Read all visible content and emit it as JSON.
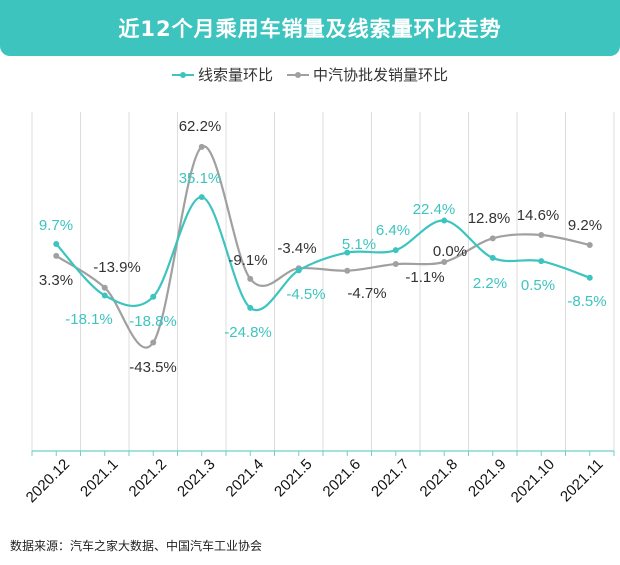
{
  "chart_data": {
    "type": "line",
    "title": "近12个月乘用车销量及线索量环比走势",
    "categories": [
      "2020.12",
      "2021.1",
      "2021.2",
      "2021.3",
      "2021.4",
      "2021.5",
      "2021.6",
      "2021.7",
      "2021.8",
      "2021.9",
      "2021.10",
      "2021.11"
    ],
    "series": [
      {
        "name": "线索量环比",
        "color": "#3dc4bf",
        "values": [
          9.7,
          -18.1,
          -18.8,
          35.1,
          -24.8,
          -4.5,
          5.1,
          6.4,
          22.4,
          2.2,
          0.5,
          -8.5
        ],
        "labels": [
          "9.7%",
          "-18.1%",
          "-18.8%",
          "35.1%",
          "-24.8%",
          "-4.5%",
          "5.1%",
          "6.4%",
          "22.4%",
          "2.2%",
          "0.5%",
          "-8.5%"
        ]
      },
      {
        "name": "中汽协批发销量环比",
        "color": "#a0a0a0",
        "values": [
          3.3,
          -13.9,
          -43.5,
          62.2,
          -9.1,
          -3.4,
          -4.7,
          -1.1,
          0.0,
          12.8,
          14.6,
          9.2
        ],
        "labels": [
          "3.3%",
          "-13.9%",
          "-43.5%",
          "62.2%",
          "-9.1%",
          "-3.4%",
          "-4.7%",
          "-1.1%",
          "0.0%",
          "12.8%",
          "14.6%",
          "9.2%"
        ]
      }
    ],
    "xlabel": "",
    "ylabel": "",
    "grid": "vertical",
    "legend": "top-center",
    "source": "数据来源：汽车之家大数据、中国汽车工业协会"
  }
}
